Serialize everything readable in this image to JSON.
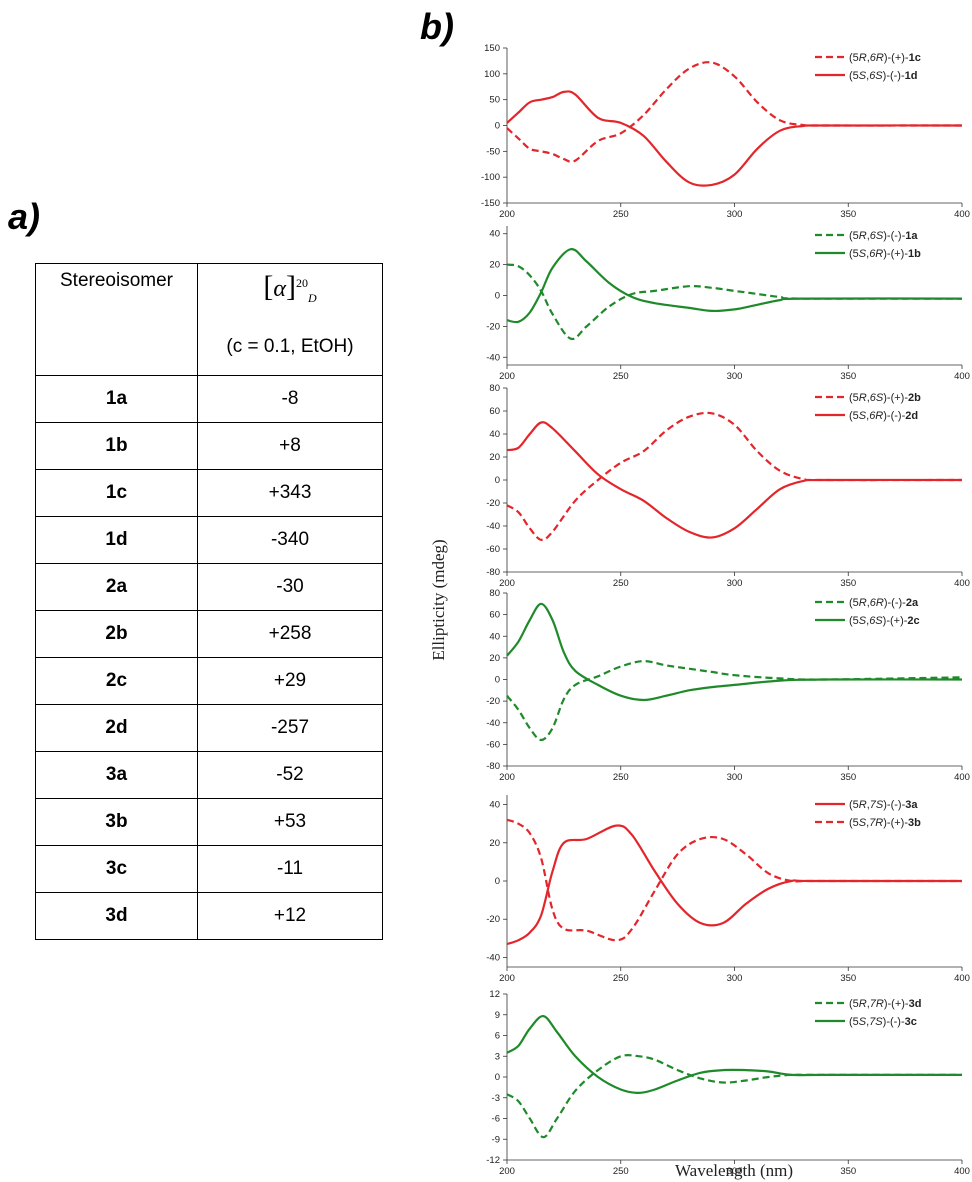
{
  "panel_a_label": "a)",
  "panel_b_label": "b)",
  "table": {
    "col1_header": "Stereoisomer",
    "col2_symbol": "α",
    "col2_sup": "20",
    "col2_sub": "D",
    "col2_condition": "(c = 0.1, EtOH)",
    "rows": [
      {
        "id": "1a",
        "value": "-8"
      },
      {
        "id": "1b",
        "value": "+8"
      },
      {
        "id": "1c",
        "value": "+343"
      },
      {
        "id": "1d",
        "value": "-340"
      },
      {
        "id": "2a",
        "value": "-30"
      },
      {
        "id": "2b",
        "value": "+258"
      },
      {
        "id": "2c",
        "value": "+29"
      },
      {
        "id": "2d",
        "value": "-257"
      },
      {
        "id": "3a",
        "value": "-52"
      },
      {
        "id": "3b",
        "value": "+53"
      },
      {
        "id": "3c",
        "value": "-11"
      },
      {
        "id": "3d",
        "value": "+12"
      }
    ]
  },
  "colors": {
    "red": "#e3262b",
    "green": "#1f8a2a"
  },
  "chart_data": {
    "type": "line",
    "ylabel": "Ellipticity (mdeg)",
    "xlabel": "Wavelength (nm)",
    "xlim": [
      200,
      400
    ],
    "xticks": [
      200,
      250,
      300,
      350,
      400
    ],
    "panels": [
      {
        "ylim": [
          -150,
          150
        ],
        "yticks": [
          -150,
          -100,
          -50,
          0,
          50,
          100,
          150
        ],
        "series": [
          {
            "prefix": "(5",
            "cfg": [
              "R",
              "6R"
            ],
            "sign": "(+)",
            "compound": "1c",
            "color": "red",
            "dashed": true,
            "x": [
              200,
              205,
              210,
              215,
              220,
              225,
              230,
              240,
              250,
              260,
              270,
              280,
              290,
              300,
              310,
              320,
              330,
              340,
              400
            ],
            "y": [
              -5,
              -25,
              -45,
              -50,
              -55,
              -65,
              -68,
              -30,
              -15,
              20,
              70,
              110,
              122,
              95,
              45,
              10,
              1,
              0,
              0
            ]
          },
          {
            "prefix": "(5",
            "cfg": [
              "S",
              "6S"
            ],
            "sign": "(-)",
            "compound": "1d",
            "color": "red",
            "dashed": false,
            "x": [
              200,
              205,
              210,
              215,
              220,
              225,
              230,
              240,
              250,
              260,
              270,
              280,
              290,
              300,
              310,
              320,
              330,
              340,
              400
            ],
            "y": [
              5,
              25,
              45,
              50,
              55,
              65,
              60,
              15,
              5,
              -20,
              -70,
              -110,
              -115,
              -95,
              -45,
              -10,
              -1,
              0,
              0
            ]
          }
        ]
      },
      {
        "ylim": [
          -45,
          45
        ],
        "yticks": [
          -40,
          -20,
          0,
          20,
          40
        ],
        "series": [
          {
            "prefix": "(5",
            "cfg": [
              "R",
              "6S"
            ],
            "sign": "(-)",
            "compound": "1a",
            "color": "green",
            "dashed": true,
            "x": [
              200,
              205,
              210,
              215,
              220,
              228,
              235,
              245,
              255,
              265,
              280,
              290,
              300,
              310,
              320,
              330,
              400
            ],
            "y": [
              20,
              19,
              13,
              3,
              -12,
              -28,
              -20,
              -7,
              1,
              3,
              6,
              5,
              3,
              1,
              -1,
              -2,
              -2
            ]
          },
          {
            "prefix": "(5",
            "cfg": [
              "S",
              "6R"
            ],
            "sign": "(+)",
            "compound": "1b",
            "color": "green",
            "dashed": false,
            "x": [
              200,
              205,
              210,
              215,
              220,
              228,
              235,
              245,
              255,
              265,
              280,
              290,
              300,
              310,
              320,
              330,
              400
            ],
            "y": [
              -16,
              -17,
              -11,
              2,
              18,
              30,
              22,
              8,
              -1,
              -5,
              -8,
              -10,
              -9,
              -6,
              -3,
              -2,
              -2
            ]
          }
        ]
      },
      {
        "ylim": [
          -80,
          80
        ],
        "yticks": [
          -80,
          -60,
          -40,
          -20,
          0,
          20,
          40,
          60,
          80
        ],
        "series": [
          {
            "prefix": "(5",
            "cfg": [
              "R",
              "6S"
            ],
            "sign": "(+)",
            "compound": "2b",
            "color": "red",
            "dashed": true,
            "x": [
              200,
              205,
              210,
              215,
              220,
              230,
              240,
              250,
              260,
              270,
              280,
              290,
              300,
              310,
              320,
              330,
              340,
              400
            ],
            "y": [
              -22,
              -28,
              -42,
              -52,
              -45,
              -18,
              0,
              15,
              25,
              43,
              55,
              58,
              48,
              25,
              8,
              1,
              0,
              0
            ]
          },
          {
            "prefix": "(5",
            "cfg": [
              "S",
              "6R"
            ],
            "sign": "(-)",
            "compound": "2d",
            "color": "red",
            "dashed": false,
            "x": [
              200,
              205,
              210,
              215,
              220,
              230,
              240,
              250,
              260,
              270,
              280,
              290,
              300,
              310,
              320,
              330,
              340,
              400
            ],
            "y": [
              26,
              28,
              40,
              50,
              45,
              25,
              5,
              -8,
              -18,
              -33,
              -45,
              -50,
              -42,
              -25,
              -8,
              -1,
              0,
              0
            ]
          }
        ]
      },
      {
        "ylim": [
          -80,
          80
        ],
        "yticks": [
          -80,
          -60,
          -40,
          -20,
          0,
          20,
          40,
          60,
          80
        ],
        "series": [
          {
            "prefix": "(5",
            "cfg": [
              "R",
              "6R"
            ],
            "sign": "(-)",
            "compound": "2a",
            "color": "green",
            "dashed": true,
            "x": [
              200,
              205,
              210,
              215,
              220,
              225,
              230,
              240,
              250,
              260,
              270,
              280,
              290,
              300,
              320,
              340,
              400
            ],
            "y": [
              -15,
              -28,
              -45,
              -56,
              -45,
              -18,
              -5,
              3,
              12,
              17,
              13,
              10,
              7,
              4,
              1,
              0,
              2
            ]
          },
          {
            "prefix": "(5",
            "cfg": [
              "S",
              "6S"
            ],
            "sign": "(+)",
            "compound": "2c",
            "color": "green",
            "dashed": false,
            "x": [
              200,
              205,
              210,
              215,
              220,
              225,
              230,
              240,
              250,
              260,
              270,
              280,
              290,
              300,
              320,
              340,
              400
            ],
            "y": [
              22,
              35,
              55,
              70,
              55,
              25,
              8,
              -5,
              -15,
              -19,
              -15,
              -10,
              -7,
              -5,
              -1,
              0,
              0
            ]
          }
        ]
      },
      {
        "ylim": [
          -45,
          45
        ],
        "yticks": [
          -40,
          -20,
          0,
          20,
          40
        ],
        "series": [
          {
            "prefix": "(5",
            "cfg": [
              "R",
              "7S"
            ],
            "sign": "(-)",
            "compound": "3a",
            "color": "red",
            "dashed": false,
            "x": [
              200,
              205,
              210,
              215,
              220,
              225,
              235,
              248,
              255,
              265,
              275,
              285,
              295,
              305,
              315,
              325,
              335,
              400
            ],
            "y": [
              -33,
              -31,
              -27,
              -18,
              5,
              20,
              22,
              29,
              24,
              5,
              -12,
              -22,
              -22,
              -12,
              -4,
              0,
              0,
              0
            ]
          },
          {
            "prefix": "(5",
            "cfg": [
              "S",
              "7R"
            ],
            "sign": "(+)",
            "compound": "3b",
            "color": "red",
            "dashed": true,
            "x": [
              200,
              205,
              210,
              215,
              220,
              225,
              235,
              248,
              255,
              265,
              275,
              285,
              295,
              305,
              315,
              325,
              335,
              400
            ],
            "y": [
              32,
              30,
              25,
              12,
              -15,
              -25,
              -26,
              -31,
              -25,
              -5,
              14,
              22,
              22,
              14,
              4,
              0,
              0,
              0
            ]
          }
        ]
      },
      {
        "ylim": [
          -12,
          12
        ],
        "yticks": [
          -12,
          -9,
          -6,
          -3,
          0,
          3,
          6,
          9,
          12
        ],
        "series": [
          {
            "prefix": "(5",
            "cfg": [
              "R",
              "7R"
            ],
            "sign": "(+)",
            "compound": "3d",
            "color": "green",
            "dashed": true,
            "x": [
              200,
              205,
              210,
              216,
              222,
              230,
              240,
              250,
              258,
              265,
              275,
              285,
              295,
              305,
              315,
              325,
              340,
              400
            ],
            "y": [
              -2.5,
              -3.5,
              -6,
              -8.7,
              -6,
              -2,
              1,
              3,
              3,
              2.5,
              1,
              -0.2,
              -0.8,
              -0.5,
              0,
              0.3,
              0.3,
              0.3
            ]
          },
          {
            "prefix": "(5",
            "cfg": [
              "S",
              "7S"
            ],
            "sign": "(-)",
            "compound": "3c",
            "color": "green",
            "dashed": false,
            "x": [
              200,
              205,
              210,
              216,
              222,
              230,
              240,
              250,
              258,
              265,
              275,
              285,
              295,
              305,
              315,
              325,
              340,
              400
            ],
            "y": [
              3.5,
              4.5,
              7,
              8.8,
              6.5,
              3,
              0,
              -1.8,
              -2.3,
              -1.8,
              -0.5,
              0.6,
              1,
              1,
              0.8,
              0.3,
              0.3,
              0.3
            ]
          }
        ]
      }
    ]
  }
}
